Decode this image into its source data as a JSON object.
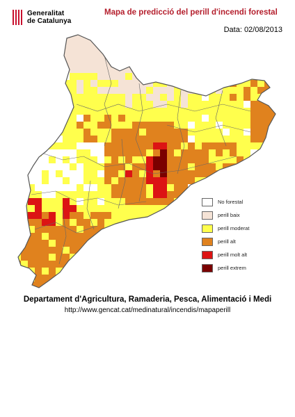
{
  "header": {
    "logo_line1": "Generalitat",
    "logo_line2": "de Catalunya",
    "title": "Mapa de predicció del perill d'incendi forestal",
    "date_label": "Data:",
    "date_value": "02/08/2013"
  },
  "colors": {
    "no_forestal": "#ffffff",
    "perill_baix": "#f5e3d6",
    "perill_moderat": "#ffff4d",
    "perill_alt": "#e0821e",
    "perill_molt_alt": "#dc1414",
    "perill_extrem": "#7a0000",
    "outline": "#555555"
  },
  "legend": {
    "items": [
      {
        "label": "No forestal",
        "color": "#ffffff"
      },
      {
        "label": "perill baix",
        "color": "#f5e3d6"
      },
      {
        "label": "perill moderat",
        "color": "#ffff4d"
      },
      {
        "label": "perill alt",
        "color": "#e0821e"
      },
      {
        "label": "perill molt alt",
        "color": "#dc1414"
      },
      {
        "label": "perill extrem",
        "color": "#7a0000"
      }
    ]
  },
  "footer": {
    "department": "Departament d'Agricultura, Ramaderia, Pesca, Alimentació i Medi",
    "url": "http://www.gencat.cat/medinatural/incendis/mapaperill"
  }
}
